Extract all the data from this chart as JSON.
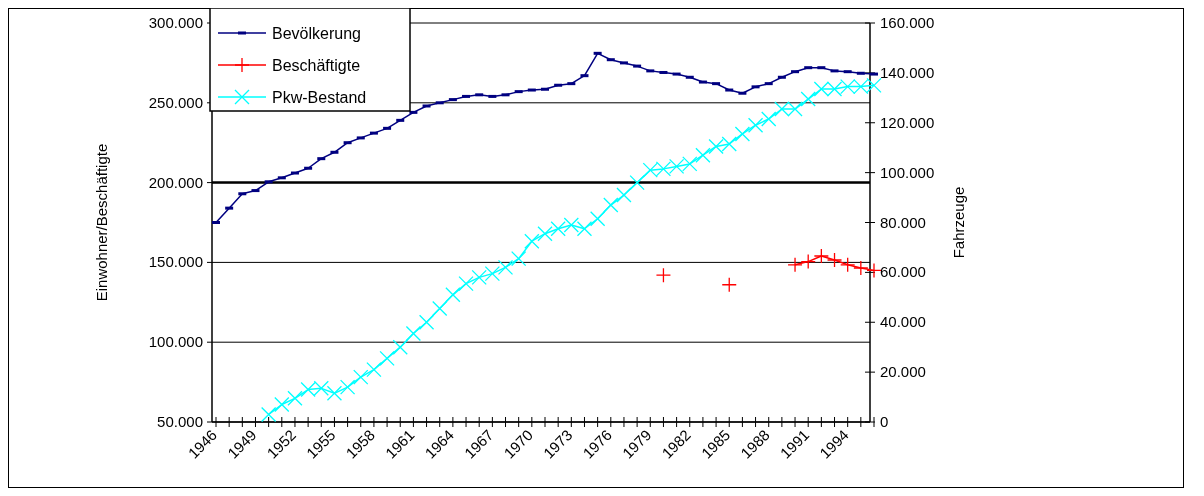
{
  "chart_data": {
    "type": "line",
    "xlabel": null,
    "ylabel": "Einwohner/Beschäftigte",
    "y2label": "Fahrzeuge",
    "categories": [
      "1946",
      null,
      null,
      "1949",
      null,
      null,
      "1952",
      null,
      null,
      "1955",
      null,
      null,
      "1958",
      null,
      null,
      "1961",
      null,
      null,
      "1964",
      null,
      null,
      "1967",
      null,
      null,
      "1970",
      null,
      null,
      "1973",
      null,
      null,
      "1976",
      null,
      null,
      "1979",
      null,
      null,
      "1982",
      null,
      null,
      "1985",
      null,
      null,
      "1988",
      null,
      null,
      "1991",
      null,
      null,
      "1994",
      null,
      null
    ],
    "series": [
      {
        "name": "Bevölkerung",
        "color": "#000080",
        "marker": "square",
        "values": [
          175000,
          184000,
          193000,
          195000,
          200500,
          203000,
          206000,
          209000,
          215000,
          219000,
          225000,
          228000,
          231000,
          234000,
          239000,
          244000,
          248000,
          250000,
          252000,
          254000,
          255000,
          254000,
          255000,
          257000,
          258000,
          258500,
          261000,
          262000,
          267000,
          281000,
          277000,
          275000,
          273000,
          270000,
          269000,
          268000,
          266000,
          263000,
          262000,
          258000,
          256000,
          260000,
          262000,
          266000,
          269500,
          272000,
          272000,
          270000,
          269500,
          268500,
          268000
        ]
      },
      {
        "name": "Beschäftigte",
        "color": "#ff0000",
        "marker": "cross",
        "values": [
          null,
          null,
          null,
          null,
          null,
          null,
          null,
          null,
          null,
          null,
          null,
          null,
          null,
          null,
          null,
          null,
          null,
          null,
          null,
          null,
          null,
          null,
          null,
          null,
          null,
          null,
          null,
          null,
          null,
          null,
          null,
          null,
          null,
          null,
          142000,
          null,
          null,
          null,
          null,
          136000,
          null,
          null,
          null,
          null,
          148500,
          150500,
          154000,
          151500,
          148500,
          146500,
          145000
        ]
      },
      {
        "name": "Pkw-Bestand",
        "color": "#00ffff",
        "marker": "x",
        "axis": "y2",
        "values": [
          null,
          null,
          null,
          null,
          3000,
          7000,
          9500,
          13000,
          13500,
          11500,
          14000,
          18000,
          21000,
          25500,
          30000,
          35500,
          40000,
          45500,
          51000,
          55500,
          58000,
          59500,
          62000,
          65500,
          72500,
          75500,
          77500,
          79000,
          77500,
          81500,
          87000,
          91000,
          96000,
          101000,
          101500,
          102500,
          103500,
          107000,
          110500,
          111500,
          115500,
          119000,
          121500,
          125500,
          125500,
          129500,
          133500,
          133500,
          134500,
          134500,
          135000
        ]
      }
    ],
    "ylim": [
      50000,
      300000
    ],
    "yticks": [
      {
        "value": 50000,
        "label": "50.000"
      },
      {
        "value": 100000,
        "label": "100.000"
      },
      {
        "value": 150000,
        "label": "150.000"
      },
      {
        "value": 200000,
        "label": "200.000"
      },
      {
        "value": 250000,
        "label": "250.000"
      },
      {
        "value": 300000,
        "label": "300.000"
      }
    ],
    "y2lim": [
      0,
      160000
    ],
    "y2ticks": [
      0,
      {
        "value": 20000,
        "label": "20.000"
      },
      {
        "value": 40000,
        "label": "40.000"
      },
      {
        "value": 60000,
        "label": "60.000"
      },
      {
        "value": 80000,
        "label": "80.000"
      },
      {
        "value": 100000,
        "label": "100.000"
      },
      {
        "value": 120000,
        "label": "120.000"
      },
      {
        "value": 140000,
        "label": "140.000"
      },
      {
        "value": 160000,
        "label": "160.000"
      }
    ],
    "ref_lines": [
      {
        "axis": "y",
        "value": 200000,
        "color": "#000000"
      }
    ],
    "grid": "y",
    "legend": "top left",
    "line_style": "solid"
  }
}
